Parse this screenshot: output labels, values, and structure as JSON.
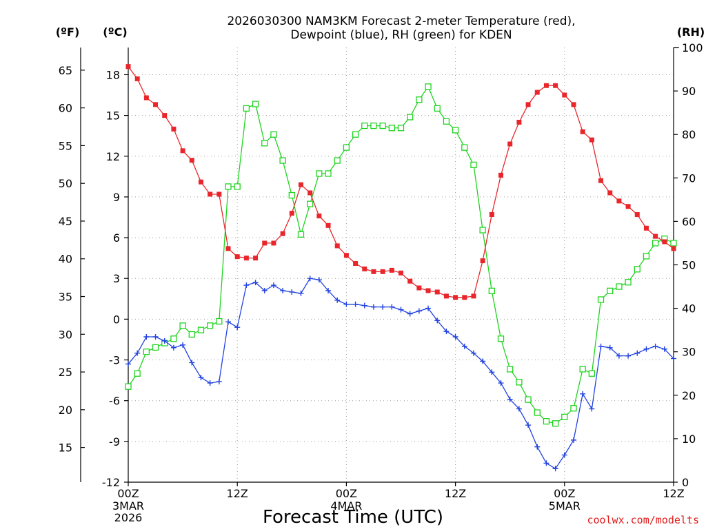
{
  "chart_data": {
    "type": "line",
    "title_line1": "2026030300 NAM3KM Forecast 2-meter Temperature (red),",
    "title_line2": "Dewpoint (blue), RH (green) for KDEN",
    "xlabel": "Forecast Time (UTC)",
    "credit": "coolwx.com/modelts",
    "units": {
      "left_outer": "(ºF)",
      "left_inner": "(ºC)",
      "right": "(RH)"
    },
    "x_range_hours": [
      0,
      60
    ],
    "x_ticks": [
      {
        "hour": 0,
        "label": "00Z",
        "sub1": "3MAR",
        "sub2": "2026"
      },
      {
        "hour": 12,
        "label": "12Z",
        "sub1": "",
        "sub2": ""
      },
      {
        "hour": 24,
        "label": "00Z",
        "sub1": "4MAR",
        "sub2": ""
      },
      {
        "hour": 36,
        "label": "12Z",
        "sub1": "",
        "sub2": ""
      },
      {
        "hour": 48,
        "label": "00Z",
        "sub1": "5MAR",
        "sub2": ""
      },
      {
        "hour": 60,
        "label": "12Z",
        "sub1": "",
        "sub2": ""
      }
    ],
    "celsius_axis": {
      "range": [
        -12,
        20
      ],
      "ticks": [
        18,
        15,
        12,
        9,
        6,
        3,
        0,
        -3,
        -6,
        -9,
        -12
      ]
    },
    "fahrenheit_axis": {
      "ticks": [
        65,
        60,
        55,
        50,
        45,
        40,
        35,
        30,
        25,
        20,
        15
      ]
    },
    "rh_axis": {
      "range": [
        0,
        100
      ],
      "ticks": [
        100,
        90,
        80,
        70,
        60,
        50,
        40,
        30,
        20,
        10,
        0
      ]
    },
    "series": [
      {
        "name": "2-meter Temperature",
        "unit": "C",
        "color": "#e8262b",
        "marker": "filled-square",
        "values": [
          18.6,
          17.7,
          16.3,
          15.8,
          15.0,
          14.0,
          12.4,
          11.7,
          10.1,
          9.2,
          9.2,
          5.2,
          4.6,
          4.5,
          4.5,
          5.6,
          5.6,
          6.3,
          7.8,
          9.9,
          9.3,
          7.6,
          6.9,
          5.4,
          4.7,
          4.1,
          3.7,
          3.5,
          3.5,
          3.6,
          3.4,
          2.8,
          2.3,
          2.1,
          2.0,
          1.7,
          1.6,
          1.6,
          1.7,
          4.3,
          7.7,
          10.6,
          12.9,
          14.5,
          15.8,
          16.7,
          17.2,
          17.2,
          16.5,
          15.8,
          13.8,
          13.2,
          10.2,
          9.3,
          8.7,
          8.3,
          7.7,
          6.7,
          6.1,
          5.7,
          5.2
        ]
      },
      {
        "name": "Dewpoint",
        "unit": "C",
        "color": "#2042e0",
        "marker": "plus",
        "values": [
          -3.3,
          -2.5,
          -1.3,
          -1.3,
          -1.6,
          -2.1,
          -1.9,
          -3.2,
          -4.3,
          -4.7,
          -4.6,
          -0.2,
          -0.6,
          2.5,
          2.7,
          2.1,
          2.5,
          2.1,
          2.0,
          1.9,
          3.0,
          2.9,
          2.1,
          1.4,
          1.1,
          1.1,
          1.0,
          0.9,
          0.9,
          0.9,
          0.7,
          0.4,
          0.6,
          0.8,
          -0.1,
          -0.9,
          -1.3,
          -2.0,
          -2.5,
          -3.1,
          -3.9,
          -4.7,
          -5.9,
          -6.6,
          -7.8,
          -9.4,
          -10.6,
          -11.0,
          -10.0,
          -8.9,
          -5.5,
          -6.6,
          -2.0,
          -2.1,
          -2.7,
          -2.7,
          -2.5,
          -2.2,
          -2.0,
          -2.2,
          -2.9
        ]
      },
      {
        "name": "RH",
        "unit": "%",
        "color": "#1ed41e",
        "marker": "open-square",
        "values": [
          22,
          25,
          30,
          31,
          32,
          33,
          36,
          34,
          35,
          36,
          37,
          68,
          68,
          86,
          87,
          78,
          80,
          74,
          66,
          57,
          64,
          71,
          71,
          74,
          77,
          80,
          82,
          82,
          82,
          81.5,
          81.5,
          84,
          88,
          91,
          86,
          83,
          81,
          77,
          73,
          58,
          44,
          33,
          26,
          23,
          19,
          16,
          14,
          13.5,
          15,
          17,
          26,
          25,
          42,
          44,
          45,
          46,
          49,
          52,
          55,
          56,
          55
        ]
      }
    ]
  }
}
